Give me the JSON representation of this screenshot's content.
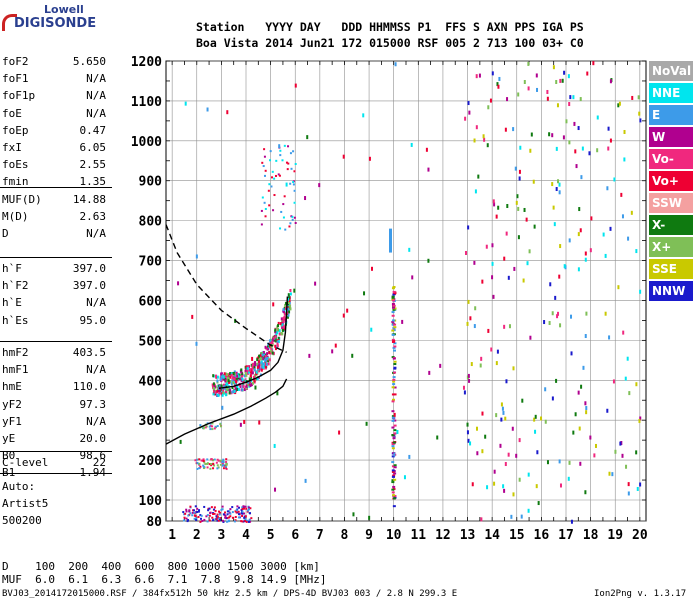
{
  "logo": {
    "line1": "Lowell",
    "line2": "DIGISONDE"
  },
  "header": {
    "row1": "Station   YYYY DAY   DDD HHMMSS P1  FFS S AXN PPS IGA PS",
    "row2": "Boa Vista 2014 Jun21 172 015000 RSF 005 2 713 100 03+ C0"
  },
  "params_group1": [
    {
      "name": "foF2",
      "value": "5.650"
    },
    {
      "name": "foF1",
      "value": "N/A"
    },
    {
      "name": "foF1p",
      "value": "N/A"
    },
    {
      "name": "foE",
      "value": "N/A"
    },
    {
      "name": "foEp",
      "value": "0.47"
    },
    {
      "name": "fxI",
      "value": "6.05"
    },
    {
      "name": "foEs",
      "value": "2.55"
    },
    {
      "name": "fmin",
      "value": "1.35"
    }
  ],
  "params_group2": [
    {
      "name": "MUF(D)",
      "value": "14.88"
    },
    {
      "name": "M(D)",
      "value": "2.63"
    },
    {
      "name": "D",
      "value": "N/A"
    }
  ],
  "params_group3": [
    {
      "name": "h`F",
      "value": "397.0"
    },
    {
      "name": "h`F2",
      "value": "397.0"
    },
    {
      "name": "h`E",
      "value": "N/A"
    },
    {
      "name": "h`Es",
      "value": "95.0"
    }
  ],
  "params_group4": [
    {
      "name": "hmF2",
      "value": "403.5"
    },
    {
      "name": "hmF1",
      "value": "N/A"
    },
    {
      "name": "hmE",
      "value": "110.0"
    },
    {
      "name": "yF2",
      "value": "97.3"
    },
    {
      "name": "yF1",
      "value": "N/A"
    },
    {
      "name": "yE",
      "value": "20.0"
    },
    {
      "name": "B0",
      "value": "98.6"
    },
    {
      "name": "B1",
      "value": "1.94"
    }
  ],
  "params_group5": [
    {
      "name": "C-level",
      "value": "22"
    }
  ],
  "auto": {
    "line1": "Auto:",
    "line2": "Artist5",
    "line3": "500200"
  },
  "legend": [
    {
      "label": "NoVal",
      "color": "#a9a9a9"
    },
    {
      "label": "NNE",
      "color": "#00e5ee"
    },
    {
      "label": "E",
      "color": "#3d9be9"
    },
    {
      "label": "W",
      "color": "#b0008f"
    },
    {
      "label": "Vo-",
      "color": "#f0287e"
    },
    {
      "label": "Vo+",
      "color": "#ee0033"
    },
    {
      "label": "SSW",
      "color": "#f4a0a0"
    },
    {
      "label": "X-",
      "color": "#0f7a10"
    },
    {
      "label": "X+",
      "color": "#7fbf57"
    },
    {
      "label": "SSE",
      "color": "#c9c900"
    },
    {
      "label": "NNW",
      "color": "#1a1acc"
    }
  ],
  "footer": {
    "d_row": "D    100  200  400  600  800 1000 1500 3000 [km]",
    "muf_row": "MUF  6.0  6.1  6.3  6.6  7.1  7.8  9.8 14.9 [MHz]",
    "file_info": "BVJ03_2014172015000.RSF / 384fx512h 50 kHz 2.5 km / DPS-4D BVJ03 003 / 2.8 N 299.3 E",
    "version": "Ion2Png v. 1.3.17"
  },
  "chart_data": {
    "type": "scatter",
    "title": "",
    "xlabel": "",
    "ylabel": "",
    "xlim": [
      0.75,
      20.25
    ],
    "ylim": [
      80,
      1200
    ],
    "xticks": [
      1,
      2,
      3,
      4,
      5,
      6,
      7,
      8,
      9,
      10,
      11,
      12,
      13,
      14,
      15,
      16,
      17,
      18,
      19,
      20
    ],
    "yticks": [
      80,
      100,
      200,
      300,
      400,
      500,
      600,
      700,
      800,
      900,
      1000,
      1100,
      1200
    ],
    "grid": true,
    "legend_position": "right",
    "profile_curve": [
      [
        0.75,
        240
      ],
      [
        1.5,
        265
      ],
      [
        2.5,
        292
      ],
      [
        3.5,
        315
      ],
      [
        4.2,
        335
      ],
      [
        4.8,
        355
      ],
      [
        5.2,
        370
      ],
      [
        5.5,
        385
      ],
      [
        5.65,
        403.5
      ]
    ],
    "dashed_curve": [
      [
        0.75,
        790
      ],
      [
        1.2,
        720
      ],
      [
        2.0,
        640
      ],
      [
        3.0,
        575
      ],
      [
        4.0,
        530
      ],
      [
        5.0,
        488
      ],
      [
        5.65,
        470
      ]
    ],
    "trace_curve": [
      [
        2.9,
        380
      ],
      [
        3.5,
        385
      ],
      [
        4.0,
        395
      ],
      [
        4.5,
        408
      ],
      [
        5.0,
        425
      ],
      [
        5.3,
        445
      ],
      [
        5.5,
        475
      ],
      [
        5.6,
        520
      ],
      [
        5.65,
        570
      ],
      [
        5.68,
        610
      ]
    ],
    "clusters": [
      {
        "x": [
          2.6,
          5.8
        ],
        "y": [
          370,
          610
        ],
        "n": 520,
        "colors": [
          "Vo-",
          "Vo+",
          "W",
          "E",
          "NNE",
          "X-",
          "X+"
        ]
      },
      {
        "x": [
          4.6,
          6.0
        ],
        "y": [
          780,
          990
        ],
        "n": 60,
        "colors": [
          "NNE",
          "E",
          "W",
          "Vo+"
        ]
      },
      {
        "x": [
          1.9,
          3.2
        ],
        "y": [
          180,
          205
        ],
        "n": 70,
        "colors": [
          "Vo+",
          "Vo-",
          "E",
          "X+"
        ]
      },
      {
        "x": [
          1.4,
          4.2
        ],
        "y": [
          80,
          95
        ],
        "n": 160,
        "colors": [
          "W",
          "Vo+",
          "NNW",
          "E"
        ]
      },
      {
        "x": [
          2.0,
          3.0
        ],
        "y": [
          280,
          295
        ],
        "n": 25,
        "colors": [
          "Vo-",
          "E",
          "X+"
        ]
      },
      {
        "x": [
          9.9,
          10.0
        ],
        "y": [
          80,
          640
        ],
        "n": 120,
        "colors": [
          "W",
          "E",
          "Vo+",
          "X-",
          "SSE",
          "NNW",
          "Vo-"
        ]
      },
      {
        "x": [
          12.8,
          20.0
        ],
        "y": [
          80,
          1200
        ],
        "n": 260,
        "colors": [
          "Vo+",
          "Vo-",
          "W",
          "X-",
          "E",
          "NNE",
          "SSE",
          "X+",
          "NNW"
        ]
      },
      {
        "x": [
          1.0,
          12.0
        ],
        "y": [
          80,
          1200
        ],
        "n": 60,
        "colors": [
          "Vo+",
          "W",
          "E",
          "X-",
          "NNE"
        ]
      }
    ],
    "marker": {
      "x": 9.85,
      "y": [
        720,
        780
      ],
      "color": "E"
    }
  }
}
